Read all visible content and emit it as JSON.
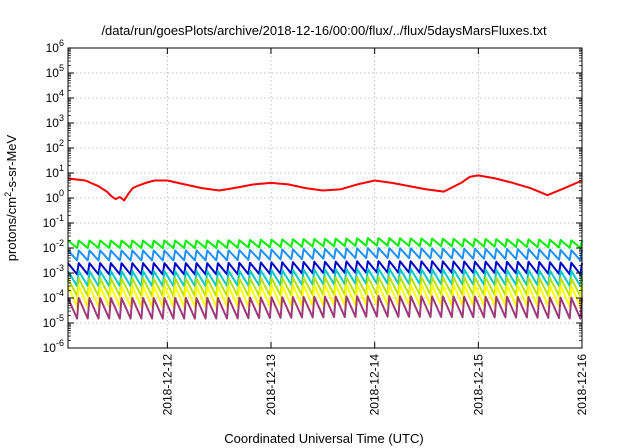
{
  "chart_data": {
    "type": "line",
    "title": "/data/run/goesPlots/archive/2018-12-16/00:00/flux/../flux/5daysMarsFluxes.txt",
    "xlabel": "Coordinated Universal Time (UTC)",
    "ylabel": "protons/cm²-s-sr-MeV",
    "yscale": "log",
    "ylim": [
      1e-06,
      1000000.0
    ],
    "xlim": [
      "2018-12-11T01:00",
      "2018-12-16T00:00"
    ],
    "grid": true,
    "yticks": [
      {
        "value": 1e-06,
        "base": "10",
        "exp": "-6"
      },
      {
        "value": 1e-05,
        "base": "10",
        "exp": "-5"
      },
      {
        "value": 0.0001,
        "base": "10",
        "exp": "-4"
      },
      {
        "value": 0.001,
        "base": "10",
        "exp": "-3"
      },
      {
        "value": 0.01,
        "base": "10",
        "exp": "-2"
      },
      {
        "value": 0.1,
        "base": "10",
        "exp": "-1"
      },
      {
        "value": 1,
        "base": "10",
        "exp": "0"
      },
      {
        "value": 10,
        "base": "10",
        "exp": "1"
      },
      {
        "value": 100,
        "base": "10",
        "exp": "2"
      },
      {
        "value": 1000,
        "base": "10",
        "exp": "3"
      },
      {
        "value": 10000,
        "base": "10",
        "exp": "4"
      },
      {
        "value": 100000,
        "base": "10",
        "exp": "5"
      },
      {
        "value": 1000000,
        "base": "10",
        "exp": "6"
      }
    ],
    "xticks": [
      "2018-12-12",
      "2018-12-13",
      "2018-12-14",
      "2018-12-15",
      "2018-12-16"
    ],
    "series": [
      {
        "color": "#ff0000",
        "x": [
          "2018-12-11T01:00",
          "2018-12-11T05:00",
          "2018-12-11T08:00",
          "2018-12-11T10:00",
          "2018-12-11T11:00",
          "2018-12-11T12:00",
          "2018-12-11T13:00",
          "2018-12-11T14:00",
          "2018-12-11T15:00",
          "2018-12-11T16:00",
          "2018-12-11T17:00",
          "2018-12-11T19:00",
          "2018-12-11T21:00",
          "2018-12-12T00:00",
          "2018-12-12T04:00",
          "2018-12-12T08:00",
          "2018-12-12T12:00",
          "2018-12-12T16:00",
          "2018-12-12T20:00",
          "2018-12-13T00:00",
          "2018-12-13T04:00",
          "2018-12-13T08:00",
          "2018-12-13T12:00",
          "2018-12-13T16:00",
          "2018-12-13T20:00",
          "2018-12-14T00:00",
          "2018-12-14T04:00",
          "2018-12-14T08:00",
          "2018-12-14T12:00",
          "2018-12-14T16:00",
          "2018-12-14T20:00",
          "2018-12-14T22:00",
          "2018-12-15T00:00",
          "2018-12-15T04:00",
          "2018-12-15T08:00",
          "2018-12-15T12:00",
          "2018-12-15T14:00",
          "2018-12-15T16:00",
          "2018-12-15T20:00",
          "2018-12-16T00:00"
        ],
        "y": [
          6,
          5,
          3,
          1.8,
          1.2,
          0.9,
          1.1,
          0.8,
          1.5,
          2.5,
          3,
          4,
          5,
          5,
          3.5,
          2.5,
          2,
          2.6,
          3.5,
          4,
          3.5,
          2.5,
          2,
          2.2,
          3.5,
          5,
          4,
          3,
          2.2,
          1.8,
          4,
          7,
          8,
          6,
          4,
          2.5,
          1.8,
          1.3,
          2.5,
          5
        ]
      },
      {
        "color": "#00ee00",
        "x": [
          "2018-12-11T01:00",
          "2018-12-12T12:00",
          "2018-12-14T00:00",
          "2018-12-15T12:00",
          "2018-12-16T00:00"
        ],
        "y": [
          0.02,
          0.02,
          0.025,
          0.022,
          0.02
        ],
        "low": 0.5,
        "spikes": 48
      },
      {
        "color": "#1e90ff",
        "x": [
          "2018-12-11T01:00",
          "2018-12-12T12:00",
          "2018-12-14T00:00",
          "2018-12-15T12:00",
          "2018-12-16T00:00"
        ],
        "y": [
          0.008,
          0.008,
          0.01,
          0.009,
          0.008
        ],
        "low": 0.4,
        "spikes": 48
      },
      {
        "color": "#0000cd",
        "x": [
          "2018-12-11T01:00",
          "2018-12-12T12:00",
          "2018-12-14T00:00",
          "2018-12-15T12:00",
          "2018-12-16T00:00"
        ],
        "y": [
          0.0025,
          0.0025,
          0.003,
          0.0028,
          0.0025
        ],
        "low": 0.35,
        "spikes": 48
      },
      {
        "color": "#00c8c8",
        "x": [
          "2018-12-11T01:00",
          "2018-12-12T12:00",
          "2018-12-14T00:00",
          "2018-12-15T12:00",
          "2018-12-16T00:00"
        ],
        "y": [
          0.0012,
          0.0012,
          0.0015,
          0.0013,
          0.0012
        ],
        "low": 0.25,
        "spikes": 48
      },
      {
        "color": "#b8e000",
        "x": [
          "2018-12-11T01:00",
          "2018-12-12T12:00",
          "2018-12-14T00:00",
          "2018-12-15T12:00",
          "2018-12-16T00:00"
        ],
        "y": [
          0.0006,
          0.0006,
          0.0007,
          0.00065,
          0.0006
        ],
        "low": 0.2,
        "spikes": 48
      },
      {
        "color": "#ffff00",
        "x": [
          "2018-12-11T01:00",
          "2018-12-12T12:00",
          "2018-12-14T00:00",
          "2018-12-15T12:00",
          "2018-12-16T00:00"
        ],
        "y": [
          0.0003,
          0.0003,
          0.00035,
          0.00032,
          0.0003
        ],
        "low": 0.15,
        "spikes": 48
      },
      {
        "color": "#9e3a78",
        "x": [
          "2018-12-11T01:00",
          "2018-12-12T12:00",
          "2018-12-14T00:00",
          "2018-12-15T12:00",
          "2018-12-16T00:00"
        ],
        "y": [
          0.0001,
          0.0001,
          0.00012,
          0.00011,
          0.0001
        ],
        "low": 0.15,
        "spikes": 48
      }
    ]
  }
}
